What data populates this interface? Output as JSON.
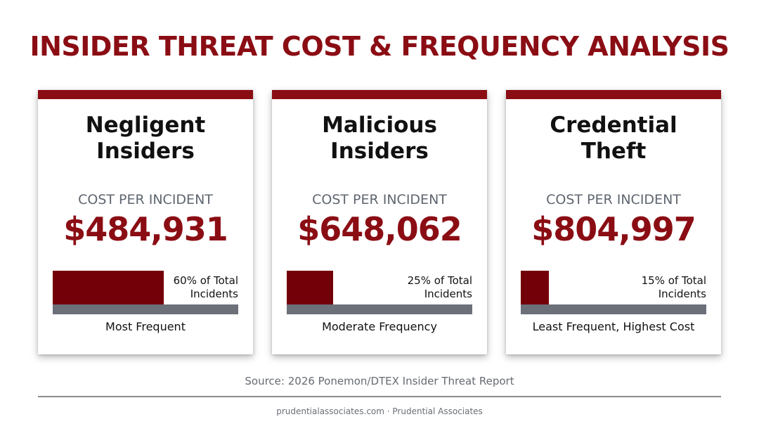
{
  "title": "INSIDER THREAT COST & FREQUENCY ANALYSIS",
  "colors": {
    "accent": "#8b0d14",
    "bar_fill": "#730008",
    "bar_track": "#6b7079"
  },
  "cards": [
    {
      "title_line1": "Negligent",
      "title_line2": "Insiders",
      "cost_label": "COST PER INCIDENT",
      "cost": "$484,931",
      "share_percent": 60,
      "pct_line1": "60% of Total",
      "pct_line2": "Incidents",
      "frequency": "Most Frequent"
    },
    {
      "title_line1": "Malicious",
      "title_line2": "Insiders",
      "cost_label": "COST PER INCIDENT",
      "cost": "$648,062",
      "share_percent": 25,
      "pct_line1": "25% of Total",
      "pct_line2": "Incidents",
      "frequency": "Moderate Frequency"
    },
    {
      "title_line1": "Credential",
      "title_line2": "Theft",
      "cost_label": "COST PER INCIDENT",
      "cost": "$804,997",
      "share_percent": 15,
      "pct_line1": "15% of Total",
      "pct_line2": "Incidents",
      "frequency": "Least Frequent, Highest Cost"
    }
  ],
  "source": "Source: 2026 Ponemon/DTEX Insider Threat Report",
  "footer": "prudentialassociates.com · Prudential Associates"
}
